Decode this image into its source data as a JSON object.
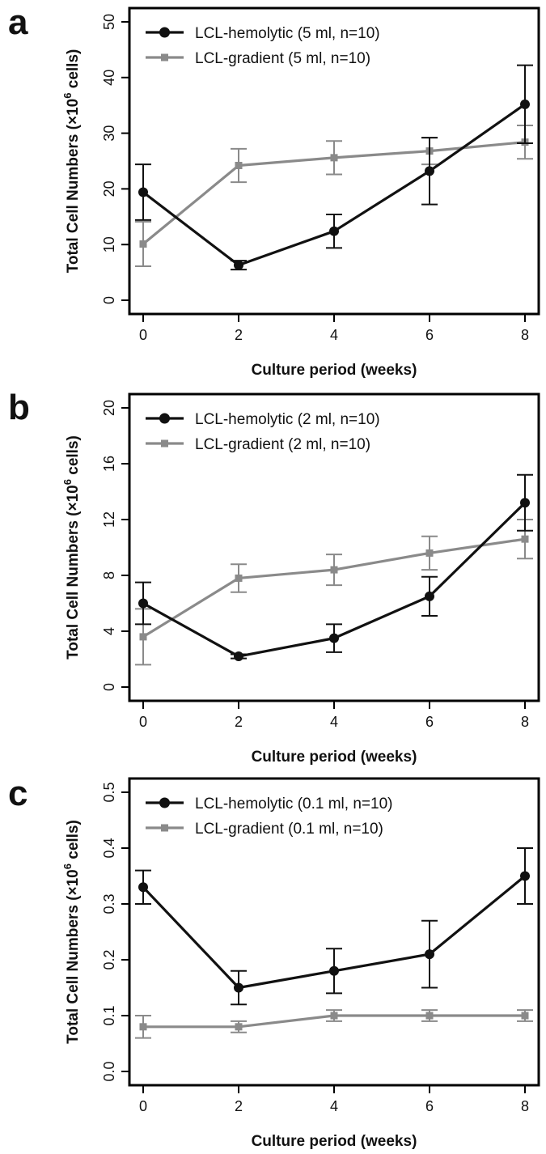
{
  "chart_data": [
    {
      "type": "line",
      "panel_label": "a",
      "xlabel": "Culture period (weeks)",
      "ylabel_main": "Total Cell Numbers (×10",
      "ylabel_exp": "6",
      "ylabel_end": " cells)",
      "x": [
        0,
        2,
        4,
        6,
        8
      ],
      "x_ticks": [
        "0",
        "2",
        "4",
        "6",
        "8"
      ],
      "ylim": [
        0,
        50
      ],
      "y_ticks": [
        "0",
        "10",
        "20",
        "30",
        "40",
        "50"
      ],
      "y_tick_values": [
        0,
        10,
        20,
        30,
        40,
        50
      ],
      "legend_position": "top-left",
      "series": [
        {
          "name": "LCL-hemolytic (5 ml, n=10)",
          "color": "#111111",
          "marker": "circle",
          "values": [
            19.4,
            6.3,
            12.4,
            23.2,
            35.2
          ],
          "errors": [
            5.0,
            0.8,
            3.0,
            6.0,
            7.0
          ]
        },
        {
          "name": "LCL-gradient (5 ml, n=10)",
          "color": "#8a8a8a",
          "marker": "square",
          "values": [
            10.1,
            24.2,
            25.6,
            26.8,
            28.4
          ],
          "errors": [
            4.0,
            3.0,
            3.0,
            2.4,
            3.0
          ]
        }
      ]
    },
    {
      "type": "line",
      "panel_label": "b",
      "xlabel": "Culture period (weeks)",
      "ylabel_main": "Total Cell Numbers (×10",
      "ylabel_exp": "6",
      "ylabel_end": " cells)",
      "x": [
        0,
        2,
        4,
        6,
        8
      ],
      "x_ticks": [
        "0",
        "2",
        "4",
        "6",
        "8"
      ],
      "ylim": [
        0,
        20
      ],
      "y_ticks": [
        "0",
        "4",
        "8",
        "12",
        "16",
        "20"
      ],
      "y_tick_values": [
        0,
        4,
        8,
        12,
        16,
        20
      ],
      "legend_position": "top-left",
      "series": [
        {
          "name": "LCL-hemolytic (2 ml, n=10)",
          "color": "#111111",
          "marker": "circle",
          "values": [
            6.0,
            2.2,
            3.5,
            6.5,
            13.2
          ],
          "errors": [
            1.5,
            0.15,
            1.0,
            1.4,
            2.0
          ]
        },
        {
          "name": "LCL-gradient (2 ml, n=10)",
          "color": "#8a8a8a",
          "marker": "square",
          "values": [
            3.6,
            7.8,
            8.4,
            9.6,
            10.6
          ],
          "errors": [
            2.0,
            1.0,
            1.1,
            1.2,
            1.4
          ]
        }
      ]
    },
    {
      "type": "line",
      "panel_label": "c",
      "xlabel": "Culture period (weeks)",
      "ylabel_main": "Total Cell Numbers (×10",
      "ylabel_exp": "6",
      "ylabel_end": " cells)",
      "x": [
        0,
        2,
        4,
        6,
        8
      ],
      "x_ticks": [
        "0",
        "2",
        "4",
        "6",
        "8"
      ],
      "ylim": [
        0,
        0.5
      ],
      "y_ticks": [
        "0.0",
        "0.1",
        "0.2",
        "0.3",
        "0.4",
        "0.5"
      ],
      "y_tick_values": [
        0,
        0.1,
        0.2,
        0.3,
        0.4,
        0.5
      ],
      "legend_position": "top-left",
      "series": [
        {
          "name": "LCL-hemolytic (0.1 ml, n=10)",
          "color": "#111111",
          "marker": "circle",
          "values": [
            0.33,
            0.15,
            0.18,
            0.21,
            0.35
          ],
          "errors": [
            0.03,
            0.03,
            0.04,
            0.06,
            0.05
          ]
        },
        {
          "name": "LCL-gradient (0.1 ml, n=10)",
          "color": "#8a8a8a",
          "marker": "square",
          "values": [
            0.08,
            0.08,
            0.1,
            0.1,
            0.1
          ],
          "errors": [
            0.02,
            0.01,
            0.01,
            0.01,
            0.01
          ]
        }
      ]
    }
  ]
}
